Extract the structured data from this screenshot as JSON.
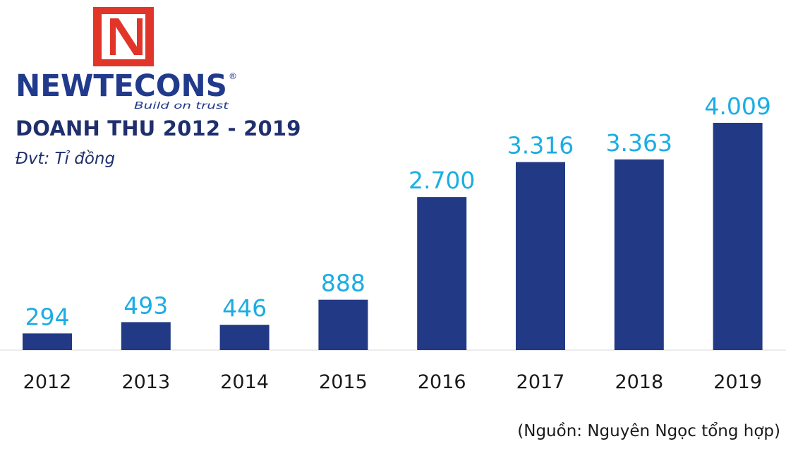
{
  "logo": {
    "brand_name": "NEWTECONS",
    "tagline": "Build on trust",
    "registered_mark": "®",
    "colors": {
      "red": "#e2352a",
      "navy": "#213a8c"
    }
  },
  "source_note": "(Nguồn: Nguyên Ngọc tổng hợp)",
  "chart_data": {
    "type": "bar",
    "title": "DOANH THU 2012 - 2019",
    "subtitle": "Đvt: Tỉ đồng",
    "xlabel": "",
    "ylabel": "",
    "categories": [
      "2012",
      "2013",
      "2014",
      "2015",
      "2016",
      "2017",
      "2018",
      "2019"
    ],
    "values": [
      294,
      493,
      446,
      888,
      2700,
      3316,
      3363,
      4009
    ],
    "value_labels": [
      "294",
      "493",
      "446",
      "888",
      "2.700",
      "3.316",
      "3.363",
      "4.009"
    ],
    "ylim": [
      0,
      5000
    ],
    "grid": false,
    "legend": "none",
    "colors": {
      "bar": "#223a85",
      "value_label": "#1bade4",
      "baseline": "#d9d9d9"
    }
  }
}
